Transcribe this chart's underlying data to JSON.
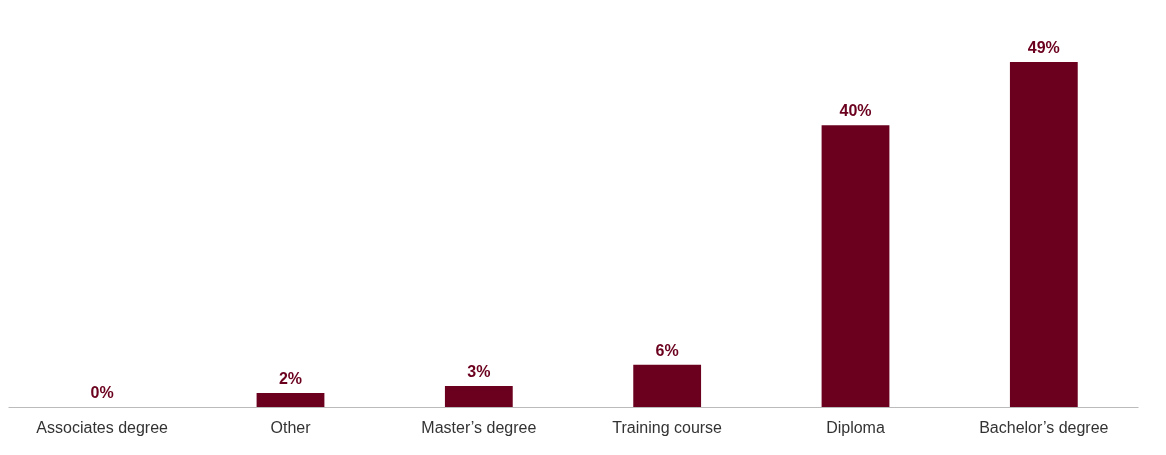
{
  "chart_data": {
    "type": "bar",
    "categories": [
      "Associates degree",
      "Other",
      "Master’s degree",
      "Training course",
      "Diploma",
      "Bachelor’s degree"
    ],
    "values": [
      0,
      2,
      3,
      6,
      40,
      49
    ],
    "value_labels": [
      "0%",
      "2%",
      "3%",
      "6%",
      "40%",
      "49%"
    ],
    "color": "#6b001e",
    "grid": false
  }
}
